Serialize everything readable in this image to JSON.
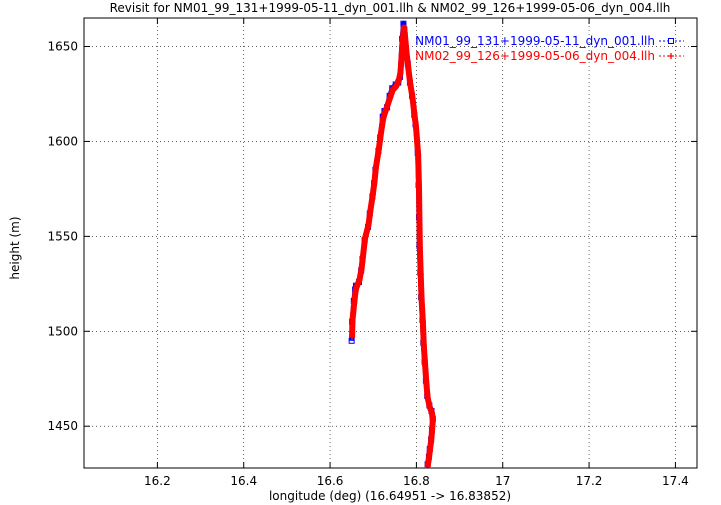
{
  "chart_data": {
    "type": "line",
    "title": "Revisit for NM01_99_131+1999-05-11_dyn_001.llh & NM02_99_126+1999-05-06_dyn_004.llh",
    "xlabel": "longitude (deg) (16.64951 -> 16.83852)",
    "ylabel": "height (m)",
    "xlim": [
      16.03,
      17.45
    ],
    "ylim": [
      1428,
      1665
    ],
    "x_ticks": [
      16.2,
      16.4,
      16.6,
      16.8,
      17,
      17.2,
      17.4
    ],
    "y_ticks": [
      1450,
      1500,
      1550,
      1600,
      1650
    ],
    "x_tick_labels": [
      "16.2",
      "16.4",
      "16.6",
      "16.8",
      "17",
      "17.2",
      "17.4"
    ],
    "y_tick_labels": [
      "1450",
      "1500",
      "1550",
      "1600",
      "1650"
    ],
    "grid": true,
    "legend_position": "top-right",
    "series": [
      {
        "name": "NM01_99_131+1999-05-11_dyn_001.llh",
        "color": "#0000ff",
        "marker": "square",
        "x": [
          16.65,
          16.651,
          16.655,
          16.658,
          16.66,
          16.667,
          16.672,
          16.675,
          16.68,
          16.688,
          16.692,
          16.698,
          16.702,
          16.705,
          16.712,
          16.716,
          16.722,
          16.726,
          16.732,
          16.738,
          16.744,
          16.752,
          16.758,
          16.762,
          16.767,
          16.77,
          16.772,
          16.776,
          16.78,
          16.785,
          16.79,
          16.795,
          16.798,
          16.803,
          16.805,
          16.806,
          16.807,
          16.809,
          16.811,
          16.814,
          16.816,
          16.819,
          16.822,
          16.825,
          16.83,
          16.835,
          16.838,
          16.836,
          16.834,
          16.831,
          16.829,
          16.826
        ],
        "y": [
          1495,
          1505,
          1516,
          1522,
          1524,
          1526,
          1532,
          1538,
          1548,
          1555,
          1562,
          1571,
          1578,
          1585,
          1595,
          1602,
          1613,
          1616,
          1618,
          1624,
          1628,
          1630,
          1631,
          1634,
          1654,
          1662,
          1659,
          1649,
          1641,
          1631,
          1624,
          1614,
          1609,
          1594,
          1577,
          1560,
          1545,
          1531,
          1518,
          1506,
          1494,
          1484,
          1474,
          1466,
          1461,
          1458,
          1454,
          1448,
          1443,
          1438,
          1434,
          1430
        ]
      },
      {
        "name": "NM02_99_126+1999-05-06_dyn_004.llh",
        "color": "#ff0000",
        "marker": "plus",
        "x": [
          16.651,
          16.652,
          16.656,
          16.659,
          16.661,
          16.668,
          16.673,
          16.676,
          16.681,
          16.689,
          16.693,
          16.699,
          16.703,
          16.706,
          16.713,
          16.717,
          16.723,
          16.727,
          16.733,
          16.739,
          16.745,
          16.753,
          16.759,
          16.763,
          16.768,
          16.771,
          16.773,
          16.777,
          16.781,
          16.786,
          16.791,
          16.796,
          16.799,
          16.804,
          16.806,
          16.807,
          16.808,
          16.81,
          16.812,
          16.815,
          16.817,
          16.82,
          16.823,
          16.826,
          16.831,
          16.836,
          16.838,
          16.836,
          16.834,
          16.831,
          16.829,
          16.826
        ],
        "y": [
          1497,
          1506,
          1515,
          1521,
          1523,
          1527,
          1533,
          1539,
          1549,
          1556,
          1563,
          1572,
          1579,
          1586,
          1596,
          1603,
          1612,
          1615,
          1619,
          1623,
          1627,
          1629,
          1632,
          1636,
          1652,
          1660,
          1657,
          1647,
          1639,
          1630,
          1623,
          1613,
          1608,
          1593,
          1576,
          1559,
          1544,
          1530,
          1517,
          1505,
          1493,
          1483,
          1473,
          1465,
          1460,
          1457,
          1453,
          1447,
          1442,
          1437,
          1433,
          1429
        ]
      }
    ]
  }
}
